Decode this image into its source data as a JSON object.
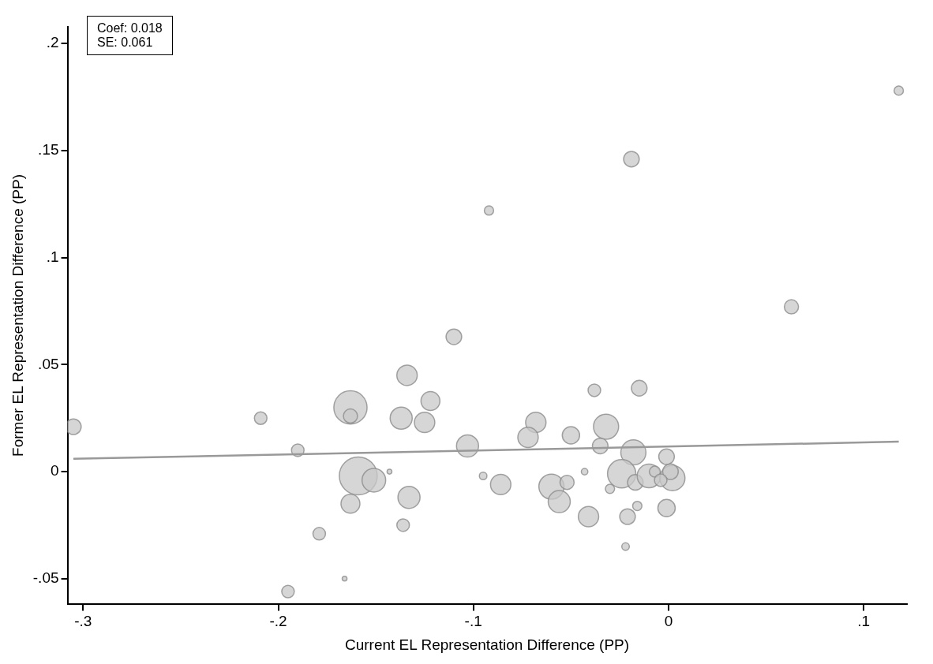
{
  "chart_data": {
    "type": "bubble",
    "xlabel": "Current EL Representation Difference (PP)",
    "ylabel": "Former EL Representation Difference (PP)",
    "annotations": [
      "Coef: 0.018",
      "SE: 0.061"
    ],
    "xlim": [
      -0.308,
      0.122
    ],
    "xticks": [
      {
        "value": -0.3,
        "label": "-.3"
      },
      {
        "value": -0.2,
        "label": "-.2"
      },
      {
        "value": -0.1,
        "label": "-.1"
      },
      0,
      {
        "value": 0.1,
        "label": ".1"
      }
    ],
    "ylim": [
      -0.062,
      0.208
    ],
    "yticks": [
      {
        "value": -0.05,
        "label": "-.05"
      },
      0,
      {
        "value": 0.05,
        "label": ".05"
      },
      {
        "value": 0.1,
        "label": ".1"
      },
      {
        "value": 0.15,
        "label": ".15"
      },
      {
        "value": 0.2,
        "label": ".2"
      }
    ],
    "grid": false,
    "legend": false,
    "series": [
      {
        "type": "bubble",
        "color": "#c8c8c8",
        "x": [
          -0.305,
          -0.209,
          -0.19,
          -0.163,
          -0.163,
          -0.159,
          -0.151,
          -0.143,
          -0.163,
          -0.179,
          -0.195,
          -0.166,
          -0.134,
          -0.137,
          -0.125,
          -0.122,
          -0.136,
          -0.133,
          -0.103,
          -0.095,
          -0.086,
          -0.068,
          -0.072,
          -0.05,
          -0.06,
          -0.056,
          -0.052,
          -0.043,
          -0.041,
          -0.038,
          -0.015,
          -0.032,
          -0.035,
          -0.018,
          -0.024,
          -0.03,
          -0.017,
          -0.01,
          -0.007,
          -0.001,
          0.002,
          0.001,
          -0.004,
          -0.001,
          -0.021,
          -0.016,
          -0.022,
          -0.019,
          -0.092,
          -0.11,
          0.063,
          0.118
        ],
        "values": [
          0.021,
          0.025,
          0.01,
          0.03,
          0.026,
          -0.002,
          -0.004,
          0.0,
          -0.015,
          -0.029,
          -0.056,
          -0.05,
          0.045,
          0.025,
          0.023,
          0.033,
          -0.025,
          -0.012,
          0.012,
          -0.002,
          -0.006,
          0.023,
          0.016,
          0.017,
          -0.007,
          -0.014,
          -0.005,
          0.0,
          -0.021,
          0.038,
          0.039,
          0.021,
          0.012,
          0.009,
          -0.001,
          -0.008,
          -0.005,
          -0.002,
          0.0,
          0.007,
          -0.003,
          0.0,
          -0.004,
          -0.017,
          -0.021,
          -0.016,
          -0.035,
          0.146,
          0.122,
          0.063,
          0.077,
          0.178
        ],
        "sizes": [
          0.17,
          0.11,
          0.11,
          0.77,
          0.14,
          1,
          0.39,
          0.016,
          0.25,
          0.11,
          0.11,
          0.016,
          0.29,
          0.34,
          0.29,
          0.25,
          0.11,
          0.34,
          0.34,
          0.04,
          0.29,
          0.29,
          0.29,
          0.21,
          0.44,
          0.34,
          0.14,
          0.03,
          0.29,
          0.11,
          0.17,
          0.44,
          0.17,
          0.44,
          0.56,
          0.06,
          0.17,
          0.39,
          0.085,
          0.17,
          0.44,
          0.17,
          0.11,
          0.21,
          0.17,
          0.06,
          0.04,
          0.17,
          0.06,
          0.17,
          0.14,
          0.06
        ]
      },
      {
        "type": "line",
        "color": "#999999",
        "x": [
          -0.305,
          0.118
        ],
        "values": [
          0.006,
          0.014
        ]
      }
    ]
  }
}
